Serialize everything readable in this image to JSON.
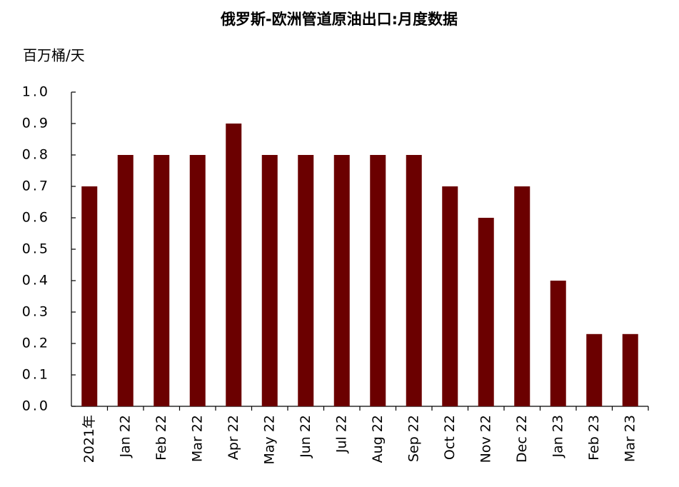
{
  "chart_data": {
    "type": "bar",
    "title": "俄罗斯-欧洲管道原油出口:月度数据",
    "y_label": "百万桶/天",
    "categories": [
      "2021年",
      "Jan 22",
      "Feb 22",
      "Mar 22",
      "Apr 22",
      "May 22",
      "Jun 22",
      "Jul 22",
      "Aug 22",
      "Sep 22",
      "Oct 22",
      "Nov 22",
      "Dec 22",
      "Jan 23",
      "Feb 23",
      "Mar 23"
    ],
    "values": [
      0.7,
      0.8,
      0.8,
      0.8,
      0.9,
      0.8,
      0.8,
      0.8,
      0.8,
      0.8,
      0.7,
      0.6,
      0.7,
      0.4,
      0.23,
      0.23
    ],
    "color": "#6b0000",
    "ylim": [
      0,
      1.0
    ],
    "yticks": [
      {
        "value": 0,
        "label": "0.0"
      },
      0.1,
      0.2,
      0.3,
      0.4,
      0.5,
      0.6,
      0.7,
      0.8,
      0.9,
      {
        "value": 1.0,
        "label": "1.0"
      }
    ],
    "grid": false
  }
}
